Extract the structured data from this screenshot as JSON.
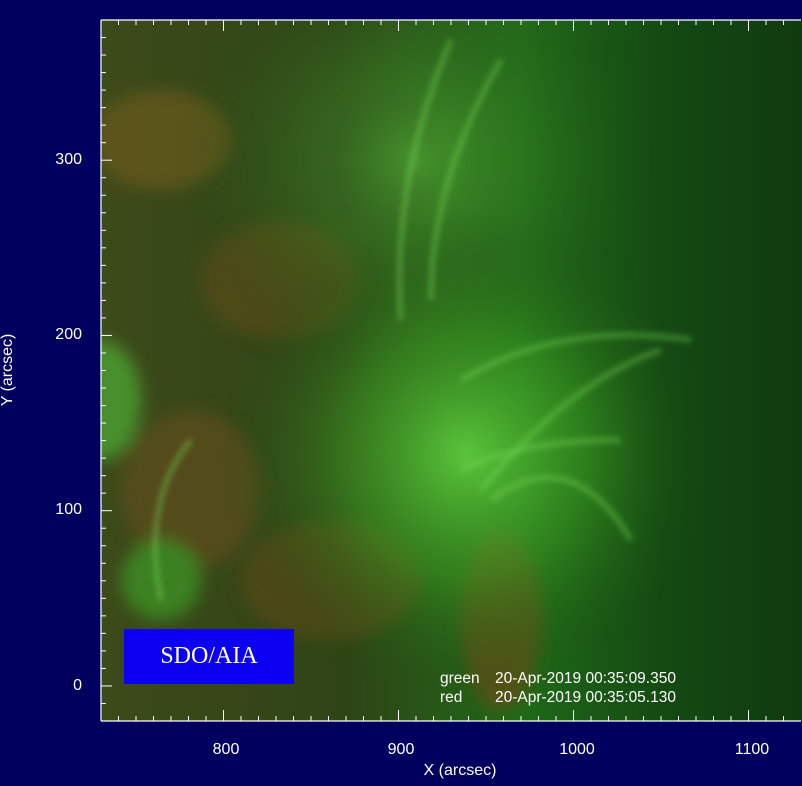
{
  "figure": {
    "x_axis": {
      "label": "X (arcsec)",
      "ticks": [
        "800",
        "900",
        "1000",
        "1100"
      ],
      "range": [
        730,
        1130
      ]
    },
    "y_axis": {
      "label": "Y (arcsec)",
      "ticks": [
        "0",
        "100",
        "200",
        "300"
      ],
      "range": [
        -20,
        380
      ]
    },
    "instrument_label": "SDO/AIA",
    "timestamps": [
      {
        "channel": "green",
        "time": "20-Apr-2019 00:35:09.350"
      },
      {
        "channel": "red",
        "time": "20-Apr-2019 00:35:05.130"
      }
    ],
    "colors": {
      "background": "#00005e",
      "badge": "#0b00f2",
      "image_green": "#2e9a1e",
      "image_red": "#7a4a14",
      "text": "#ffffff"
    }
  }
}
